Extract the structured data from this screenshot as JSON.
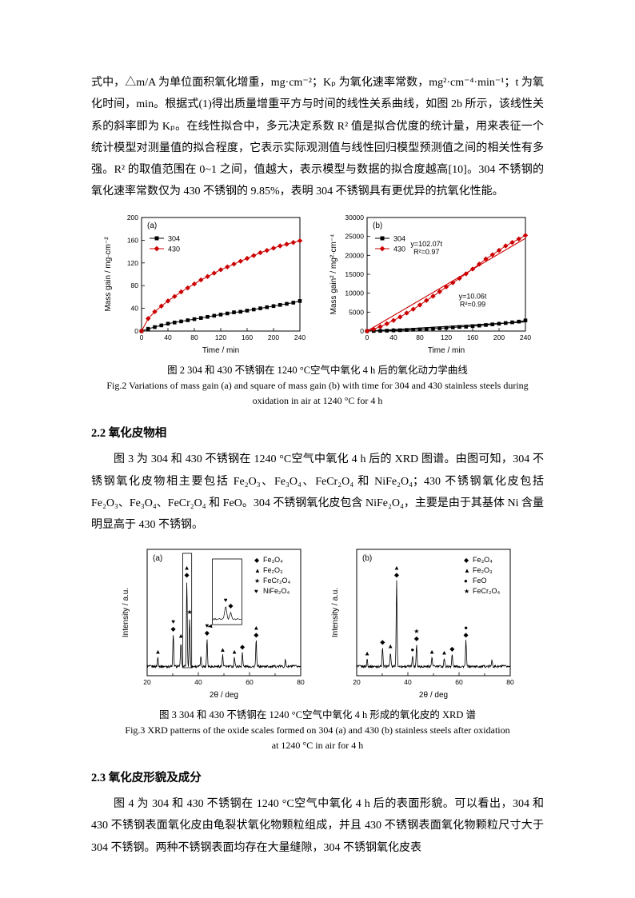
{
  "doc": {
    "para1": "式中，△m/A 为单位面积氧化增重，mg·cm⁻²；Kₚ 为氧化速率常数，mg²·cm⁻⁴·min⁻¹；t 为氧化时间，min。根据式(1)得出质量增重平方与时间的线性关系曲线，如图 2b 所示，该线性关系的斜率即为 Kₚ。在线性拟合中，多元决定系数 R² 值是拟合优度的统计量，用来表征一个统计模型对测量值的拟合程度，它表示实际观测值与线性回归模型预测值之间的相关性有多强。R² 的取值范围在 0~1 之间，值越大，表示模型与数据的拟合度越高[10]。304 不锈钢的氧化速率常数仅为 430 不锈钢的 9.85%，表明 304 不锈钢具有更优异的抗氧化性能。",
    "fig2_caption_cn": "图 2 304 和 430 不锈钢在 1240 °C空气中氧化 4 h 后的氧化动力学曲线",
    "fig2_caption_en": "Fig.2 Variations of mass gain (a) and square of mass gain (b) with time for 304 and 430 stainless steels during oxidation in air at 1240 °C for 4 h",
    "sec22_heading": "2.2 氧化皮物相",
    "para2": "图 3 为 304 和 430 不锈钢在 1240 °C空气中氧化 4 h 后的 XRD 图谱。由图可知，304 不锈钢氧化皮物相主要包括 Fe₂O₃、Fe₃O₄、FeCr₂O₄ 和 NiFe₂O₄；430 不锈钢氧化皮包括 Fe₂O₃、Fe₃O₄、FeCr₂O₄ 和 FeO。304 不锈钢氧化皮包含 NiFe₂O₄，主要是由于其基体 Ni 含量明显高于 430 不锈钢。",
    "fig3_caption_cn": "图 3 304 和 430 不锈钢在 1240 °C空气中氧化 4 h 形成的氧化皮的 XRD 谱",
    "fig3_caption_en1": "Fig.3 XRD patterns of the oxide scales formed on 304 (a) and 430 (b) stainless steels after oxidation",
    "fig3_caption_en2": "at 1240 °C in air for 4 h",
    "sec23_heading": "2.3 氧化皮形貌及成分",
    "para3": "图 4 为 304 和 430 不锈钢在 1240 °C空气中氧化 4 h 后的表面形貌。可以看出，304 和 430 不锈钢表面氧化皮由龟裂状氧化物颗粒组成，并且 430 不锈钢表面氧化物颗粒尺寸大于 304 不锈钢。两种不锈钢表面均存在大量缝隙，304 不锈钢氧化皮表"
  },
  "colors": {
    "series_304": "#000000",
    "series_430": "#cc0000"
  },
  "chart_data": [
    {
      "id": "fig2a",
      "type": "line",
      "panel_label": "(a)",
      "xlabel": "Time / min",
      "ylabel": "Mass gain / mg·cm⁻²",
      "xlim": [
        0,
        240
      ],
      "ylim": [
        0,
        200
      ],
      "xticks": [
        0,
        40,
        80,
        120,
        160,
        200,
        240
      ],
      "yticks": [
        0,
        40,
        80,
        120,
        160,
        200
      ],
      "legend_position": "top-left-inside",
      "x": [
        0,
        10,
        20,
        30,
        40,
        50,
        60,
        70,
        80,
        90,
        100,
        110,
        120,
        130,
        140,
        150,
        160,
        170,
        180,
        190,
        200,
        210,
        220,
        230,
        240
      ],
      "series": [
        {
          "name": "304",
          "color": "#000000",
          "marker": "square",
          "values": [
            0,
            4,
            7,
            10,
            13,
            15,
            17,
            19,
            21,
            23,
            25,
            27,
            29,
            31,
            33,
            34,
            36,
            38,
            40,
            42,
            44,
            46,
            48,
            50,
            53
          ]
        },
        {
          "name": "430",
          "color": "#cc0000",
          "marker": "diamond",
          "values": [
            0,
            22,
            34,
            44,
            53,
            61,
            69,
            76,
            83,
            90,
            96,
            102,
            108,
            113,
            118,
            123,
            128,
            133,
            138,
            142,
            146,
            150,
            153,
            156,
            159
          ]
        }
      ]
    },
    {
      "id": "fig2b",
      "type": "line",
      "panel_label": "(b)",
      "xlabel": "Time / min",
      "ylabel": "Mass gain² / mg²·cm⁻⁴",
      "xlim": [
        0,
        240
      ],
      "ylim": [
        0,
        30000
      ],
      "xticks": [
        0,
        40,
        80,
        120,
        160,
        200,
        240
      ],
      "yticks": [
        0,
        5000,
        10000,
        15000,
        20000,
        25000,
        30000
      ],
      "legend_position": "top-left-inside",
      "x": [
        0,
        10,
        20,
        30,
        40,
        50,
        60,
        70,
        80,
        90,
        100,
        110,
        120,
        130,
        140,
        150,
        160,
        170,
        180,
        190,
        200,
        210,
        220,
        230,
        240
      ],
      "series": [
        {
          "name": "304",
          "color": "#000000",
          "marker": "square",
          "values": [
            0,
            16,
            49,
            100,
            169,
            225,
            289,
            361,
            441,
            529,
            625,
            729,
            841,
            961,
            1089,
            1156,
            1296,
            1444,
            1600,
            1764,
            1936,
            2116,
            2304,
            2500,
            2809
          ]
        },
        {
          "name": "430",
          "color": "#cc0000",
          "marker": "diamond",
          "values": [
            0,
            484,
            1156,
            1936,
            2809,
            3721,
            4761,
            5776,
            6889,
            8100,
            9216,
            10404,
            11664,
            12769,
            13924,
            15129,
            16384,
            17689,
            19044,
            20164,
            21316,
            22500,
            23409,
            24336,
            25281
          ]
        }
      ],
      "fits": [
        {
          "label": "y=102.07t",
          "r2": "R²=0.97",
          "slope": 102.07,
          "color": "#cc0000",
          "label_at": [
            90,
            22400
          ]
        },
        {
          "label": "y=10.06t",
          "r2": "R²=0.99",
          "slope": 10.06,
          "color": "#000000",
          "label_at": [
            160,
            8600
          ]
        }
      ]
    },
    {
      "id": "fig3a",
      "type": "xrd",
      "panel_label": "(a)",
      "xlabel": "2θ / deg",
      "ylabel": "Intensity / a.u.",
      "xlim": [
        20,
        80
      ],
      "xticks": [
        20,
        40,
        60,
        80
      ],
      "legend_position": "top-right-inside",
      "legend": [
        {
          "marker": "◆",
          "label": "Fe₃O₄"
        },
        {
          "marker": "▲",
          "label": "Fe₂O₃"
        },
        {
          "marker": "★",
          "label": "FeCr₂O₄"
        },
        {
          "marker": "♥",
          "label": "NiFe₂O₄"
        }
      ],
      "peaks": [
        {
          "x": 24.2,
          "h": 0.1,
          "marks": [
            "▲"
          ]
        },
        {
          "x": 30.2,
          "h": 0.34,
          "marks": [
            "◆",
            "♥"
          ]
        },
        {
          "x": 33.2,
          "h": 0.27,
          "marks": [
            "▲"
          ]
        },
        {
          "x": 35.5,
          "h": 0.92,
          "marks": [
            "◆",
            "▲"
          ]
        },
        {
          "x": 36.6,
          "h": 0.52,
          "marks": [
            "★"
          ]
        },
        {
          "x": 41.0,
          "h": 0.1
        },
        {
          "x": 43.4,
          "h": 0.3,
          "marks": [
            "◆",
            "♥"
          ]
        },
        {
          "x": 49.5,
          "h": 0.12,
          "marks": [
            "▲"
          ]
        },
        {
          "x": 54.1,
          "h": 0.1,
          "marks": [
            "▲"
          ]
        },
        {
          "x": 57.2,
          "h": 0.15,
          "marks": [
            "◆"
          ]
        },
        {
          "x": 62.6,
          "h": 0.28,
          "marks": [
            "◆",
            "▲"
          ]
        },
        {
          "x": 74.0,
          "h": 0.07
        }
      ],
      "inset": true
    },
    {
      "id": "fig3b",
      "type": "xrd",
      "panel_label": "(b)",
      "xlabel": "2θ / deg",
      "ylabel": "Intensity / a.u.",
      "xlim": [
        20,
        80
      ],
      "xticks": [
        20,
        40,
        60,
        80
      ],
      "legend_position": "top-right-inside",
      "legend": [
        {
          "marker": "◆",
          "label": "Fe₃O₄"
        },
        {
          "marker": "▲",
          "label": "Fe₂O₃"
        },
        {
          "marker": "●",
          "label": "FeO"
        },
        {
          "marker": "★",
          "label": "FeCr₂O₄"
        }
      ],
      "peaks": [
        {
          "x": 24.1,
          "h": 0.08,
          "marks": [
            "▲"
          ]
        },
        {
          "x": 30.1,
          "h": 0.2,
          "marks": [
            "◆"
          ]
        },
        {
          "x": 33.2,
          "h": 0.16,
          "marks": [
            "▲"
          ]
        },
        {
          "x": 35.6,
          "h": 0.92,
          "marks": [
            "◆",
            "▲"
          ]
        },
        {
          "x": 41.8,
          "h": 0.12,
          "marks": [
            "●"
          ]
        },
        {
          "x": 43.4,
          "h": 0.24,
          "marks": [
            "◆",
            "★"
          ]
        },
        {
          "x": 49.4,
          "h": 0.1,
          "marks": [
            "▲"
          ]
        },
        {
          "x": 54.2,
          "h": 0.09,
          "marks": [
            "▲"
          ]
        },
        {
          "x": 57.3,
          "h": 0.13,
          "marks": [
            "◆"
          ]
        },
        {
          "x": 62.7,
          "h": 0.28,
          "marks": [
            "◆",
            "●"
          ]
        },
        {
          "x": 72.9,
          "h": 0.07
        }
      ],
      "inset": false
    }
  ]
}
